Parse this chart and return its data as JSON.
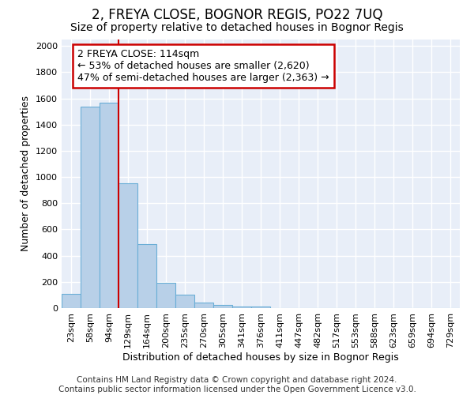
{
  "title1": "2, FREYA CLOSE, BOGNOR REGIS, PO22 7UQ",
  "title2": "Size of property relative to detached houses in Bognor Regis",
  "xlabel": "Distribution of detached houses by size in Bognor Regis",
  "ylabel": "Number of detached properties",
  "categories": [
    "23sqm",
    "58sqm",
    "94sqm",
    "129sqm",
    "164sqm",
    "200sqm",
    "235sqm",
    "270sqm",
    "305sqm",
    "341sqm",
    "376sqm",
    "411sqm",
    "447sqm",
    "482sqm",
    "517sqm",
    "553sqm",
    "588sqm",
    "623sqm",
    "659sqm",
    "694sqm",
    "729sqm"
  ],
  "values": [
    110,
    1540,
    1570,
    950,
    490,
    190,
    100,
    40,
    25,
    15,
    15,
    0,
    0,
    0,
    0,
    0,
    0,
    0,
    0,
    0,
    0
  ],
  "bar_color": "#b8d0e8",
  "bar_edge_color": "#6aaed6",
  "red_line_x": 3.0,
  "ylim": [
    0,
    2050
  ],
  "yticks": [
    0,
    200,
    400,
    600,
    800,
    1000,
    1200,
    1400,
    1600,
    1800,
    2000
  ],
  "annotation_line1": "2 FREYA CLOSE: 114sqm",
  "annotation_line2": "← 53% of detached houses are smaller (2,620)",
  "annotation_line3": "47% of semi-detached houses are larger (2,363) →",
  "annotation_box_color": "#ffffff",
  "annotation_box_edge_color": "#cc0000",
  "footnote": "Contains HM Land Registry data © Crown copyright and database right 2024.\nContains public sector information licensed under the Open Government Licence v3.0.",
  "bg_color": "#e8eef8",
  "grid_color": "#ffffff",
  "title1_fontsize": 12,
  "title2_fontsize": 10,
  "xlabel_fontsize": 9,
  "ylabel_fontsize": 9,
  "tick_fontsize": 8,
  "annotation_fontsize": 9,
  "footnote_fontsize": 7.5
}
